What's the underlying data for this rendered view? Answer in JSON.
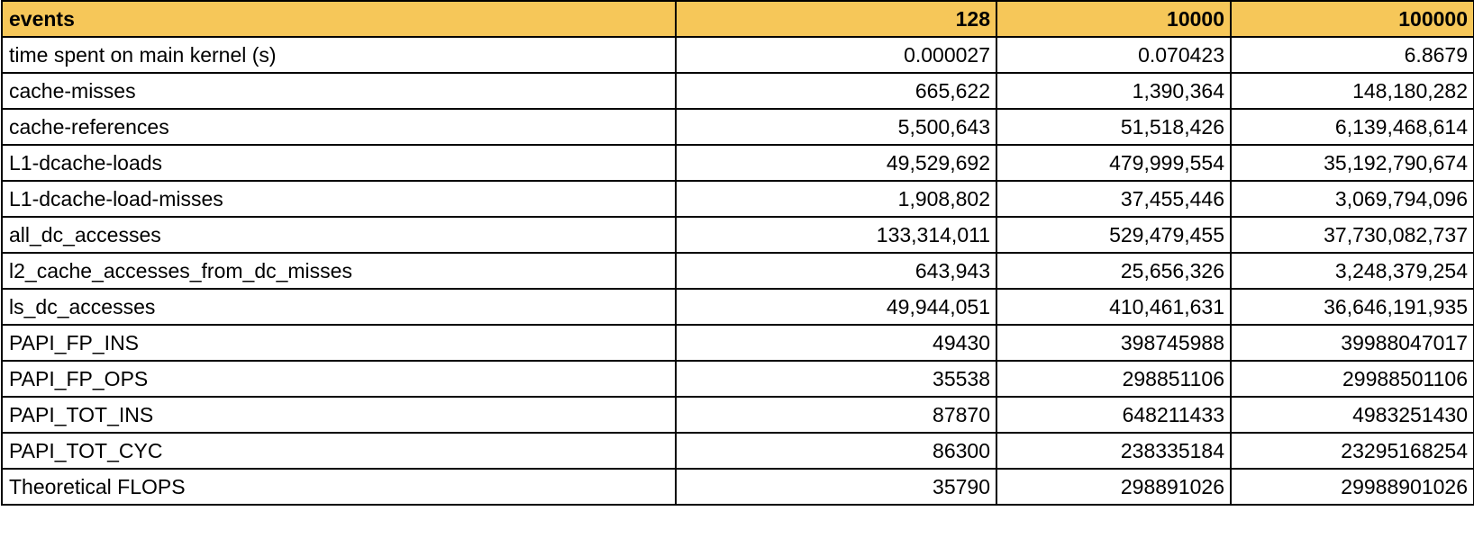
{
  "table": {
    "headers": [
      "events",
      "128",
      "10000",
      "100000"
    ],
    "rows": [
      [
        "time spent on main kernel (s)",
        "0.000027",
        "0.070423",
        "6.8679"
      ],
      [
        "cache-misses",
        "665,622",
        "1,390,364",
        "148,180,282"
      ],
      [
        "cache-references",
        "5,500,643",
        "51,518,426",
        "6,139,468,614"
      ],
      [
        "L1-dcache-loads",
        "49,529,692",
        "479,999,554",
        "35,192,790,674"
      ],
      [
        "L1-dcache-load-misses",
        "1,908,802",
        "37,455,446",
        "3,069,794,096"
      ],
      [
        "all_dc_accesses",
        "133,314,011",
        "529,479,455",
        "37,730,082,737"
      ],
      [
        "l2_cache_accesses_from_dc_misses",
        "643,943",
        "25,656,326",
        "3,248,379,254"
      ],
      [
        "ls_dc_accesses",
        "49,944,051",
        "410,461,631",
        "36,646,191,935"
      ],
      [
        "PAPI_FP_INS",
        "49430",
        "398745988",
        "39988047017"
      ],
      [
        "PAPI_FP_OPS",
        "35538",
        "298851106",
        "29988501106"
      ],
      [
        "PAPI_TOT_INS",
        "87870",
        "648211433",
        "4983251430"
      ],
      [
        "PAPI_TOT_CYC",
        "86300",
        "238335184",
        "23295168254"
      ],
      [
        "Theoretical FLOPS",
        "35790",
        "298891026",
        "29988901026"
      ]
    ]
  },
  "colors": {
    "header_background": "#f6c759",
    "border": "#000000",
    "text": "#000000"
  }
}
